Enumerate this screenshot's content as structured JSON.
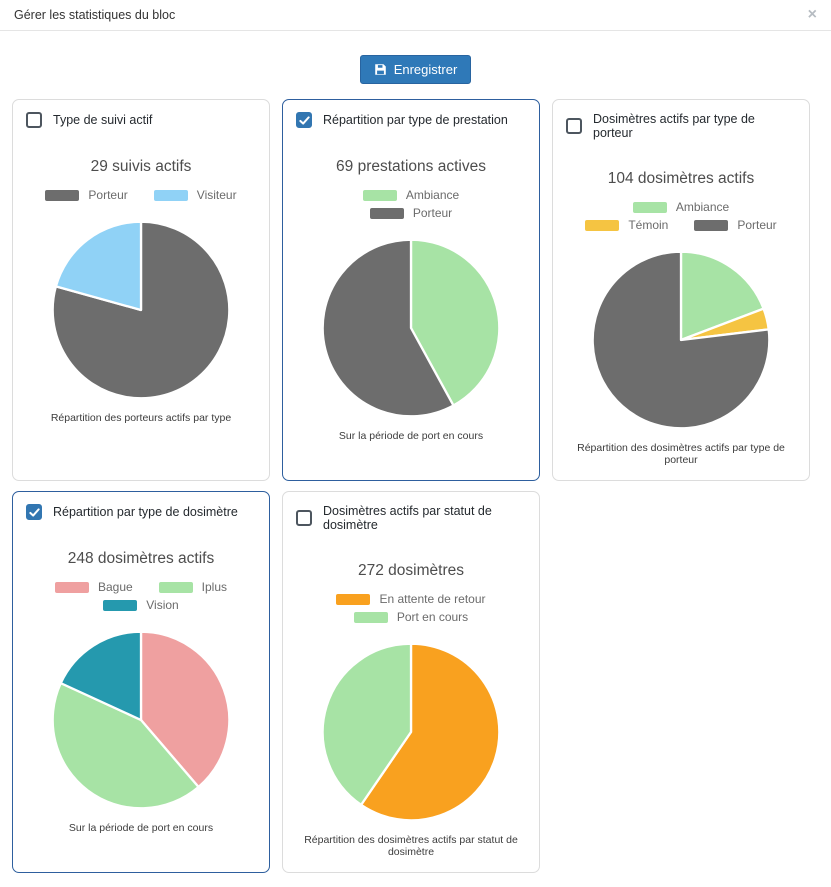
{
  "modal": {
    "title": "Gérer les statistiques du bloc",
    "close_icon": "×"
  },
  "toolbar": {
    "save_label": "Enregistrer"
  },
  "colors": {
    "accent_button": "#2f79b8",
    "selected_card_border": "#2e5f9e",
    "checkbox_checked": "#3276b1",
    "gray": "#6d6d6d",
    "light_blue": "#90d2f6",
    "green": "#a7e3a5",
    "yellow": "#f5c442",
    "pink": "#efa0a0",
    "teal": "#2599ae",
    "orange": "#f9a11f"
  },
  "cards": [
    {
      "checkbox_label": "Type de suivi actif",
      "checked": false,
      "chart_title": "29 suivis actifs",
      "caption": "Répartition des porteurs actifs par type",
      "legend_rows": [
        [
          {
            "label": "Porteur",
            "color": "#6d6d6d"
          },
          {
            "label": "Visiteur",
            "color": "#90d2f6"
          }
        ]
      ],
      "chart_data": {
        "type": "pie",
        "title": "29 suivis actifs",
        "total": 29,
        "legend_position": "top",
        "labels": [
          "Porteur",
          "Visiteur"
        ],
        "values": [
          23,
          6
        ],
        "colors": [
          "#6d6d6d",
          "#90d2f6"
        ]
      }
    },
    {
      "checkbox_label": "Répartition par type de prestation",
      "checked": true,
      "chart_title": "69 prestations actives",
      "caption": "Sur la période de port en cours",
      "legend_rows": [
        [
          {
            "label": "Ambiance",
            "color": "#a7e3a5"
          }
        ],
        [
          {
            "label": "Porteur",
            "color": "#6d6d6d"
          }
        ]
      ],
      "chart_data": {
        "type": "pie",
        "title": "69 prestations actives",
        "total": 69,
        "legend_position": "top",
        "labels": [
          "Ambiance",
          "Porteur"
        ],
        "values": [
          29,
          40
        ],
        "colors": [
          "#a7e3a5",
          "#6d6d6d"
        ]
      }
    },
    {
      "checkbox_label": "Dosimètres actifs par type de porteur",
      "checked": false,
      "chart_title": "104 dosimètres actifs",
      "caption": "Répartition des dosimètres actifs par type de porteur",
      "legend_rows": [
        [
          {
            "label": "Ambiance",
            "color": "#a7e3a5"
          }
        ],
        [
          {
            "label": "Témoin",
            "color": "#f5c442"
          },
          {
            "label": "Porteur",
            "color": "#6d6d6d"
          }
        ]
      ],
      "chart_data": {
        "type": "pie",
        "title": "104 dosimètres actifs",
        "total": 104,
        "legend_position": "top",
        "labels": [
          "Ambiance",
          "Témoin",
          "Porteur"
        ],
        "values": [
          20,
          4,
          80
        ],
        "colors": [
          "#a7e3a5",
          "#f5c442",
          "#6d6d6d"
        ]
      }
    },
    {
      "checkbox_label": "Répartition par type de dosimètre",
      "checked": true,
      "chart_title": "248 dosimètres actifs",
      "caption": "Sur la période de port en cours",
      "legend_rows": [
        [
          {
            "label": "Bague",
            "color": "#efa0a0"
          },
          {
            "label": "Iplus",
            "color": "#a7e3a5"
          }
        ],
        [
          {
            "label": "Vision",
            "color": "#2599ae"
          }
        ]
      ],
      "chart_data": {
        "type": "pie",
        "title": "248 dosimètres actifs",
        "total": 248,
        "legend_position": "top",
        "labels": [
          "Bague",
          "Iplus",
          "Vision"
        ],
        "values": [
          96,
          107,
          45
        ],
        "colors": [
          "#efa0a0",
          "#a7e3a5",
          "#2599ae"
        ]
      }
    },
    {
      "checkbox_label": "Dosimètres actifs par statut de dosimètre",
      "checked": false,
      "chart_title": "272 dosimètres",
      "caption": "Répartition des dosimètres actifs par statut de dosimètre",
      "legend_rows": [
        [
          {
            "label": "En attente de retour",
            "color": "#f9a11f"
          }
        ],
        [
          {
            "label": "Port en cours",
            "color": "#a7e3a5"
          }
        ]
      ],
      "chart_data": {
        "type": "pie",
        "title": "272 dosimètres",
        "total": 272,
        "legend_position": "top",
        "labels": [
          "En attente de retour",
          "Port en cours"
        ],
        "values": [
          162,
          110
        ],
        "colors": [
          "#f9a11f",
          "#a7e3a5"
        ]
      }
    }
  ]
}
